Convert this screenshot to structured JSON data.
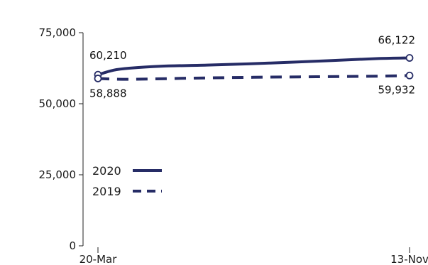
{
  "chart_data": {
    "type": "line",
    "title": "",
    "xlabel": "",
    "ylabel": "",
    "x_categories": [
      "20-Mar",
      "13-Nov"
    ],
    "ylim": [
      0,
      75000
    ],
    "y_ticks": [
      0,
      25000,
      50000,
      75000
    ],
    "y_tick_labels": [
      "0",
      "25,000",
      "50,000",
      "75,000"
    ],
    "x_tick_labels": [
      "20-Mar",
      "13-Nov"
    ],
    "series": [
      {
        "name": "2020",
        "style": "solid",
        "color": "#262c66",
        "x": [
          0,
          0.05,
          0.1,
          0.2,
          0.35,
          0.55,
          0.75,
          0.9,
          1.0
        ],
        "values": [
          60210,
          61800,
          62500,
          63200,
          63600,
          64300,
          65200,
          65900,
          66122
        ],
        "start_label": "60,210",
        "end_label": "66,122"
      },
      {
        "name": "2019",
        "style": "dashed",
        "color": "#262c66",
        "x": [
          0,
          0.1,
          0.3,
          0.5,
          0.7,
          0.9,
          1.0
        ],
        "values": [
          58888,
          58600,
          59000,
          59300,
          59500,
          59700,
          59932
        ],
        "start_label": "58,888",
        "end_label": "59,932"
      }
    ],
    "legend": [
      "2020",
      "2019"
    ],
    "legend_position": "middle-left",
    "grid": false
  }
}
